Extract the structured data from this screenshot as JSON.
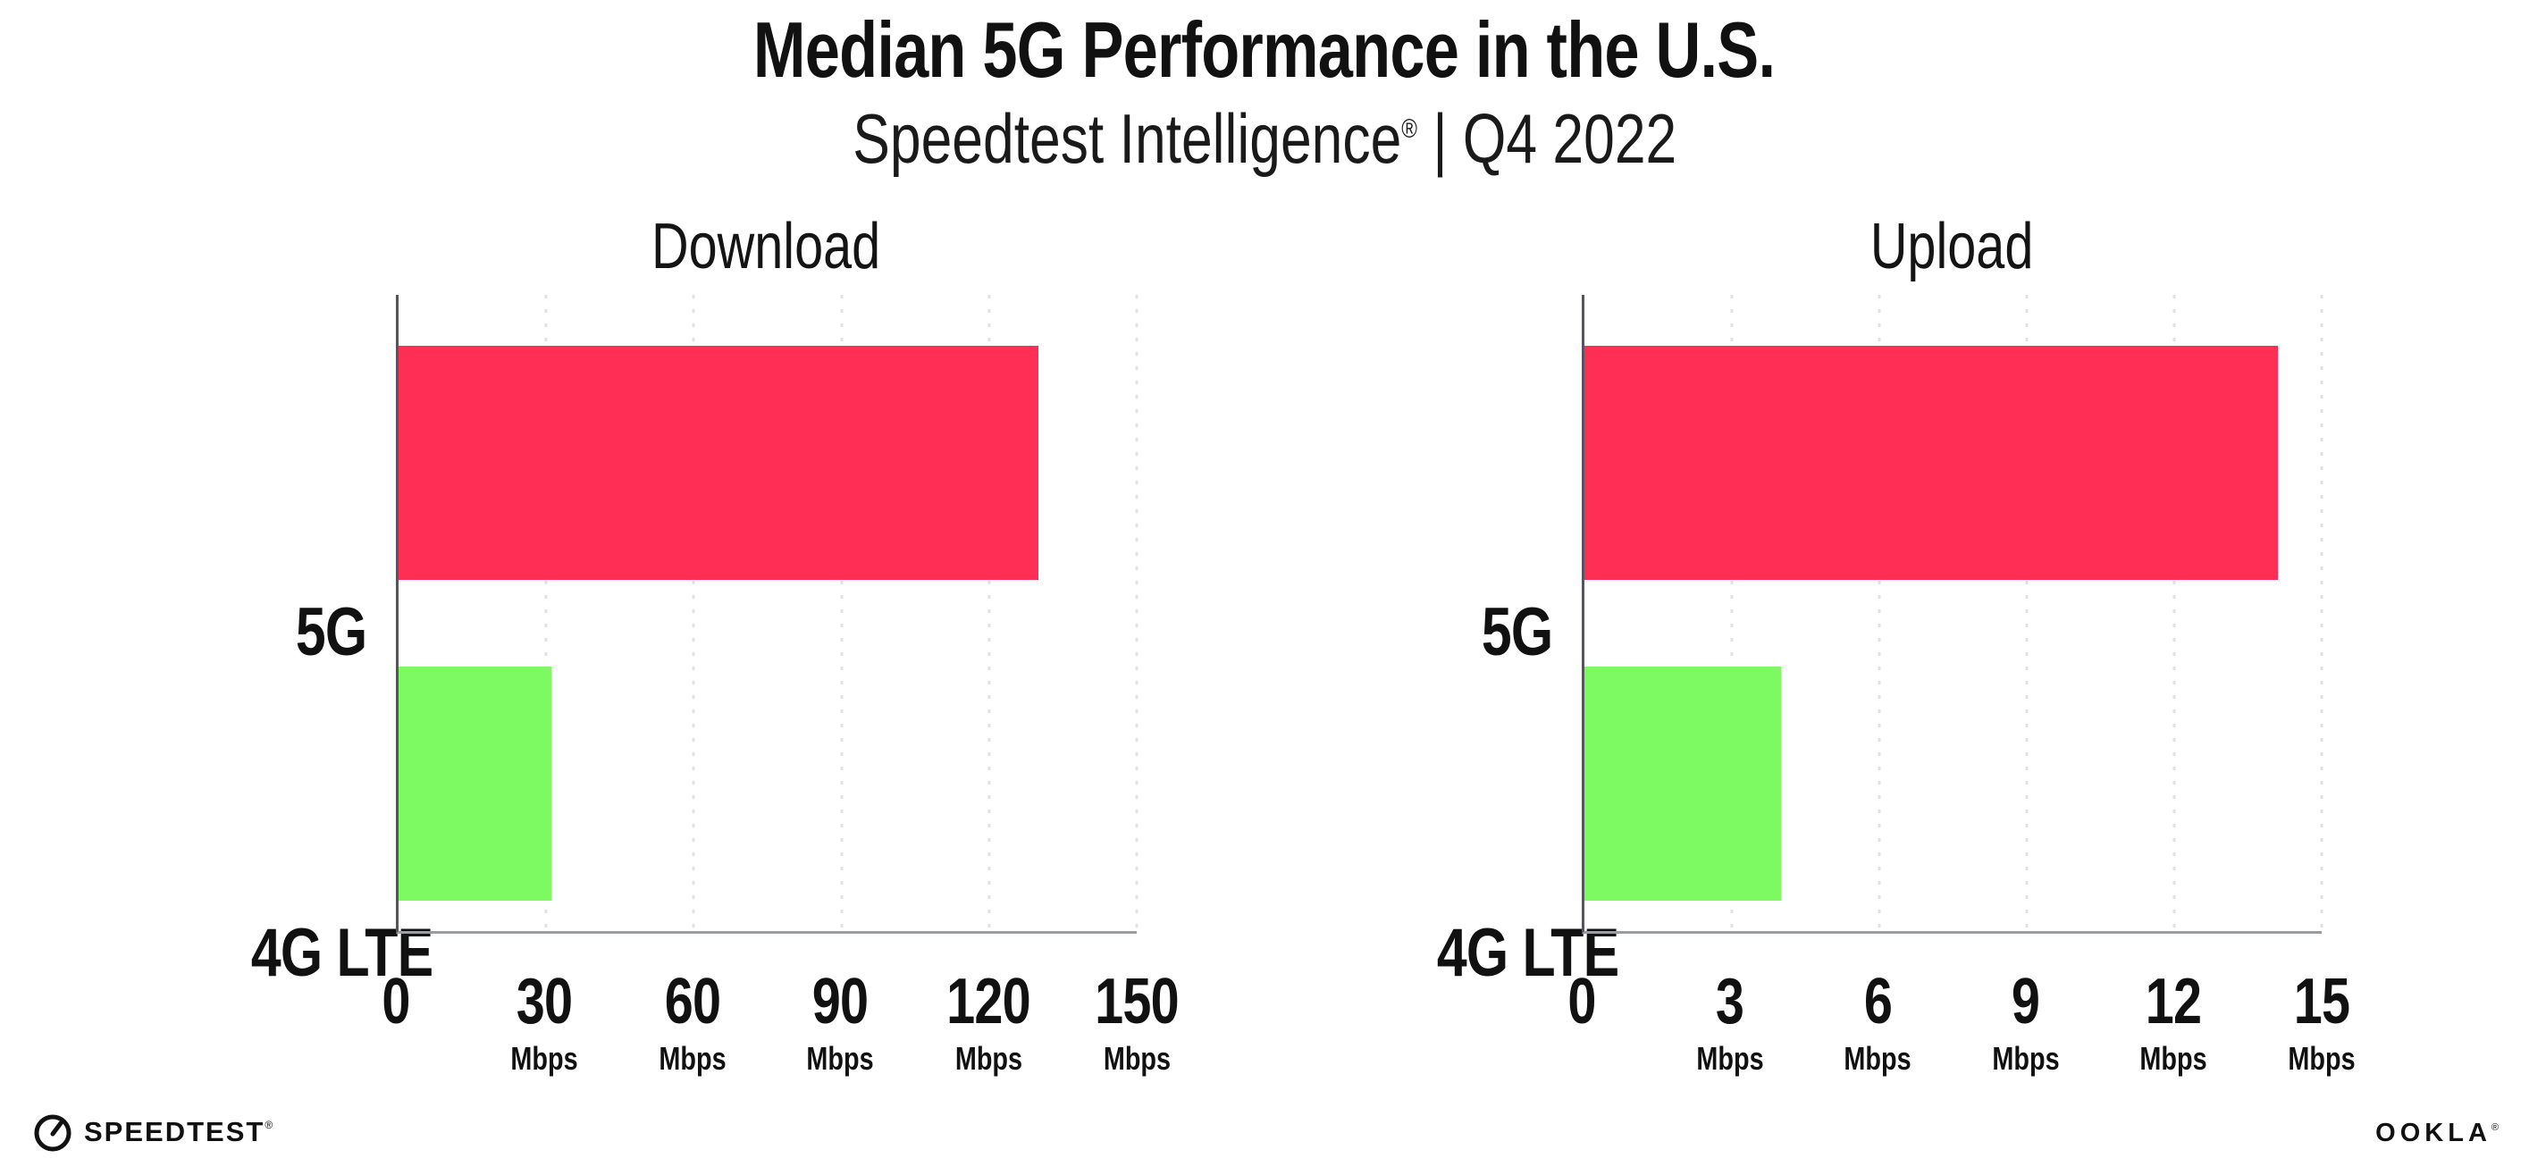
{
  "header": {
    "title": "Median 5G Performance in the U.S.",
    "subtitle_brand": "Speedtest Intelligence",
    "subtitle_mark": "®",
    "subtitle_period": " | Q4 2022"
  },
  "charts": [
    {
      "title": "Download",
      "xmax": 150,
      "ticks": [
        {
          "label": "0",
          "unit": ""
        },
        {
          "label": "30",
          "unit": "Mbps"
        },
        {
          "label": "60",
          "unit": "Mbps"
        },
        {
          "label": "90",
          "unit": "Mbps"
        },
        {
          "label": "120",
          "unit": "Mbps"
        },
        {
          "label": "150",
          "unit": "Mbps"
        }
      ],
      "bars": [
        {
          "label": "5G",
          "value": 130,
          "color": "#FF2E55"
        },
        {
          "label": "4G LTE",
          "value": 31,
          "color": "#7DFA62"
        }
      ]
    },
    {
      "title": "Upload",
      "xmax": 15,
      "ticks": [
        {
          "label": "0",
          "unit": ""
        },
        {
          "label": "3",
          "unit": "Mbps"
        },
        {
          "label": "6",
          "unit": "Mbps"
        },
        {
          "label": "9",
          "unit": "Mbps"
        },
        {
          "label": "12",
          "unit": "Mbps"
        },
        {
          "label": "15",
          "unit": "Mbps"
        }
      ],
      "bars": [
        {
          "label": "5G",
          "value": 14.1,
          "color": "#FF2E55"
        },
        {
          "label": "4G LTE",
          "value": 4,
          "color": "#7DFA62"
        }
      ]
    }
  ],
  "footer": {
    "speedtest_label": "SPEEDTEST",
    "speedtest_mark": "®",
    "ookla_label": "OOKLA",
    "ookla_mark": "®"
  },
  "colors": {
    "bar_5g": "#FF2E55",
    "bar_4g_lte": "#7DFA62",
    "gridline": "#dfe0ea",
    "axis_left": "#55555f",
    "axis_bottom": "#9b9ba3",
    "text": "#111111"
  },
  "chart_data": [
    {
      "type": "bar",
      "orientation": "horizontal",
      "suptitle": "Median 5G Performance in the U.S.",
      "subtitle": "Speedtest Intelligence® | Q4 2022",
      "title": "Download",
      "categories": [
        "5G",
        "4G LTE"
      ],
      "values": [
        130,
        31
      ],
      "unit": "Mbps",
      "xlabel": "Mbps",
      "xlim": [
        0,
        150
      ],
      "xticks": [
        0,
        30,
        60,
        90,
        120,
        150
      ],
      "colors": [
        "#FF2E55",
        "#7DFA62"
      ],
      "grid": "vertical-dotted",
      "legend": "none"
    },
    {
      "type": "bar",
      "orientation": "horizontal",
      "suptitle": "Median 5G Performance in the U.S.",
      "subtitle": "Speedtest Intelligence® | Q4 2022",
      "title": "Upload",
      "categories": [
        "5G",
        "4G LTE"
      ],
      "values": [
        14.1,
        4
      ],
      "unit": "Mbps",
      "xlabel": "Mbps",
      "xlim": [
        0,
        15
      ],
      "xticks": [
        0,
        3,
        6,
        9,
        12,
        15
      ],
      "colors": [
        "#FF2E55",
        "#7DFA62"
      ],
      "grid": "vertical-dotted",
      "legend": "none"
    }
  ]
}
